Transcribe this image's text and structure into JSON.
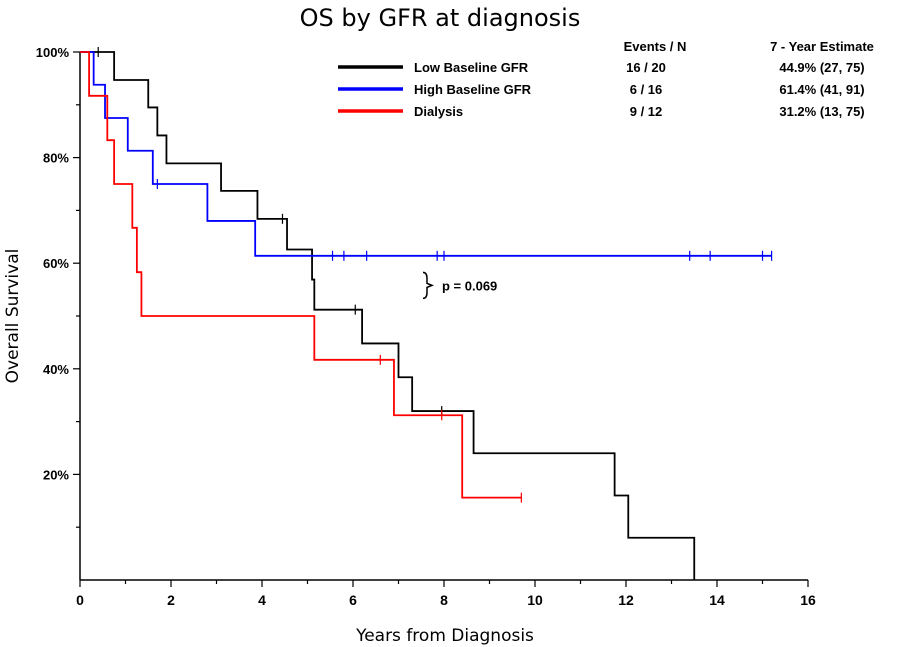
{
  "chart_data": {
    "type": "line",
    "title": "OS by GFR at diagnosis",
    "xlabel": "Years from Diagnosis",
    "ylabel": "Overall Survival",
    "xlim": [
      0,
      16
    ],
    "ylim": [
      0,
      100
    ],
    "x_ticks": [
      0,
      2,
      4,
      6,
      8,
      10,
      12,
      14,
      16
    ],
    "y_ticks": [
      {
        "value": 20,
        "label": "20%"
      },
      {
        "value": 40,
        "label": "40%"
      },
      {
        "value": 60,
        "label": "60%"
      },
      {
        "value": 80,
        "label": "80%"
      },
      {
        "value": 100,
        "label": "100%"
      }
    ],
    "grid": false,
    "legend_position": "top-right",
    "legend_headers": {
      "events": "Events / N",
      "estimate": "7 - Year Estimate"
    },
    "series": [
      {
        "name": "Low Baseline GFR",
        "color": "#000000",
        "events_n": "16 / 20",
        "estimate": "44.9% (27, 75)",
        "steps": [
          [
            0,
            100
          ],
          [
            0.75,
            94.7
          ],
          [
            1.5,
            89.5
          ],
          [
            1.7,
            84.2
          ],
          [
            1.9,
            78.9
          ],
          [
            3.1,
            73.7
          ],
          [
            3.9,
            68.4
          ],
          [
            4.55,
            62.6
          ],
          [
            5.1,
            56.9
          ],
          [
            5.15,
            51.2
          ],
          [
            6.2,
            44.8
          ],
          [
            7.0,
            38.4
          ],
          [
            7.3,
            32.0
          ],
          [
            8.65,
            24.0
          ],
          [
            11.75,
            16.0
          ],
          [
            12.05,
            8.0
          ],
          [
            13.5,
            0
          ]
        ],
        "censored": [
          [
            0.4,
            100
          ],
          [
            4.45,
            68.4
          ],
          [
            6.05,
            51.2
          ],
          [
            7.95,
            32.0
          ]
        ]
      },
      {
        "name": "High Baseline GFR",
        "color": "#0000ff",
        "events_n": "6 / 16",
        "estimate": "61.4% (41, 91)",
        "steps": [
          [
            0,
            100
          ],
          [
            0.3,
            93.8
          ],
          [
            0.55,
            87.5
          ],
          [
            1.05,
            81.3
          ],
          [
            1.6,
            75.0
          ],
          [
            2.8,
            68.0
          ],
          [
            3.85,
            61.4
          ],
          [
            15.2,
            61.4
          ]
        ],
        "censored": [
          [
            1.7,
            75.0
          ],
          [
            5.55,
            61.4
          ],
          [
            5.8,
            61.4
          ],
          [
            6.3,
            61.4
          ],
          [
            7.85,
            61.4
          ],
          [
            8.0,
            61.4
          ],
          [
            13.4,
            61.4
          ],
          [
            13.85,
            61.4
          ],
          [
            15.0,
            61.4
          ],
          [
            15.2,
            61.4
          ]
        ]
      },
      {
        "name": "Dialysis",
        "color": "#ff0000",
        "events_n": "9 / 12",
        "estimate": "31.2% (13, 75)",
        "steps": [
          [
            0,
            100
          ],
          [
            0.2,
            91.7
          ],
          [
            0.6,
            83.3
          ],
          [
            0.75,
            75.0
          ],
          [
            1.15,
            66.7
          ],
          [
            1.25,
            58.3
          ],
          [
            1.35,
            50.0
          ],
          [
            5.15,
            41.7
          ],
          [
            6.9,
            31.2
          ],
          [
            8.4,
            15.6
          ],
          [
            9.7,
            15.6
          ]
        ],
        "censored": [
          [
            6.6,
            41.7
          ],
          [
            7.95,
            31.2
          ],
          [
            9.7,
            15.6
          ]
        ]
      }
    ],
    "annotations": [
      {
        "text": "p = 0.069",
        "x": 8.3,
        "y": 55.8
      }
    ]
  }
}
